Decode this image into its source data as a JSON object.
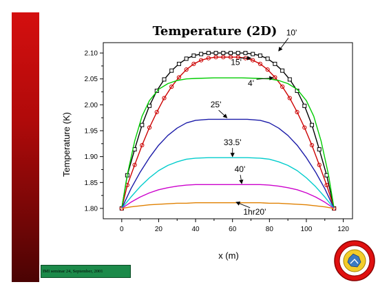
{
  "slide": {
    "footer_text": "IMI seminar 24, September, 2001",
    "logo_icon": "university-seal-logo"
  },
  "chart_data": {
    "type": "line",
    "title": "Temperature (2D)",
    "xlabel": "x (m)",
    "ylabel": "Temperature (K)",
    "xlim": [
      -10,
      125
    ],
    "ylim": [
      1.78,
      2.12
    ],
    "x_ticks": [
      0,
      20,
      40,
      60,
      80,
      100,
      120
    ],
    "y_ticks": [
      1.8,
      1.85,
      1.9,
      1.95,
      2.0,
      2.05,
      2.1
    ],
    "grid": false,
    "legend": "none",
    "series": [
      {
        "color": "#000000",
        "marker": "square",
        "x": [
          0,
          3,
          7,
          11,
          15,
          19,
          23,
          27,
          31,
          35,
          39,
          43,
          47,
          51,
          55,
          59,
          63,
          67,
          71,
          75,
          79,
          83,
          87,
          91,
          95,
          99,
          103,
          107,
          111,
          115
        ],
        "y": [
          1.8,
          1.864,
          1.914,
          1.961,
          1.998,
          2.027,
          2.049,
          2.066,
          2.079,
          2.089,
          2.095,
          2.098,
          2.1,
          2.1,
          2.1,
          2.1,
          2.1,
          2.1,
          2.098,
          2.095,
          2.089,
          2.079,
          2.066,
          2.049,
          2.027,
          1.998,
          1.961,
          1.914,
          1.864,
          1.8
        ]
      },
      {
        "color": "#cc0000",
        "marker": "circle",
        "x": [
          0,
          3,
          7,
          11,
          15,
          19,
          23,
          27,
          31,
          35,
          39,
          43,
          47,
          51,
          55,
          59,
          63,
          67,
          71,
          75,
          79,
          83,
          87,
          91,
          95,
          99,
          103,
          107,
          111,
          115
        ],
        "y": [
          1.8,
          1.845,
          1.884,
          1.922,
          1.956,
          1.986,
          2.013,
          2.035,
          2.053,
          2.068,
          2.079,
          2.086,
          2.09,
          2.092,
          2.092,
          2.092,
          2.092,
          2.09,
          2.086,
          2.079,
          2.068,
          2.053,
          2.035,
          2.013,
          1.986,
          1.956,
          1.922,
          1.884,
          1.845,
          1.8
        ]
      },
      {
        "color": "#00cc00",
        "marker": "none",
        "x": [
          0,
          3,
          7,
          11,
          15,
          20,
          25,
          30,
          35,
          40,
          50,
          57,
          65,
          75,
          80,
          85,
          90,
          95,
          100,
          104,
          108,
          112,
          115
        ],
        "y": [
          1.8,
          1.865,
          1.93,
          1.978,
          2.008,
          2.03,
          2.041,
          2.047,
          2.05,
          2.051,
          2.052,
          2.052,
          2.052,
          2.051,
          2.05,
          2.047,
          2.041,
          2.03,
          2.008,
          1.978,
          1.93,
          1.865,
          1.8
        ]
      },
      {
        "color": "#1a1aa8",
        "marker": "none",
        "x": [
          0,
          5,
          10,
          15,
          20,
          25,
          30,
          35,
          40,
          47,
          57,
          68,
          75,
          80,
          85,
          90,
          95,
          100,
          105,
          110,
          115
        ],
        "y": [
          1.8,
          1.838,
          1.87,
          1.898,
          1.922,
          1.941,
          1.955,
          1.965,
          1.97,
          1.972,
          1.972,
          1.972,
          1.97,
          1.965,
          1.955,
          1.941,
          1.922,
          1.898,
          1.87,
          1.838,
          1.8
        ]
      },
      {
        "color": "#00cccc",
        "marker": "none",
        "x": [
          0,
          5,
          10,
          15,
          20,
          25,
          30,
          35,
          40,
          47,
          57,
          68,
          75,
          80,
          85,
          90,
          95,
          100,
          105,
          110,
          115
        ],
        "y": [
          1.8,
          1.822,
          1.842,
          1.859,
          1.873,
          1.883,
          1.89,
          1.895,
          1.897,
          1.898,
          1.898,
          1.898,
          1.897,
          1.895,
          1.89,
          1.883,
          1.873,
          1.859,
          1.842,
          1.822,
          1.8
        ]
      },
      {
        "color": "#cc00cc",
        "marker": "none",
        "x": [
          0,
          5,
          10,
          15,
          20,
          25,
          30,
          35,
          40,
          47,
          57,
          68,
          75,
          80,
          85,
          90,
          95,
          100,
          105,
          110,
          115
        ],
        "y": [
          1.8,
          1.812,
          1.822,
          1.83,
          1.836,
          1.84,
          1.843,
          1.845,
          1.846,
          1.846,
          1.846,
          1.846,
          1.846,
          1.845,
          1.843,
          1.84,
          1.836,
          1.83,
          1.822,
          1.812,
          1.8
        ]
      },
      {
        "color": "#e08000",
        "marker": "none",
        "x": [
          0,
          5,
          10,
          15,
          20,
          25,
          30,
          35,
          40,
          47,
          57,
          68,
          75,
          80,
          85,
          90,
          95,
          100,
          105,
          110,
          115
        ],
        "y": [
          1.8,
          1.803,
          1.805,
          1.807,
          1.808,
          1.809,
          1.81,
          1.81,
          1.811,
          1.811,
          1.811,
          1.811,
          1.811,
          1.81,
          1.81,
          1.809,
          1.808,
          1.807,
          1.805,
          1.803,
          1.8
        ]
      }
    ],
    "annotations": [
      {
        "text": "10'",
        "tx": 92,
        "ty": 2.134,
        "ax": 85,
        "ay": 2.104
      },
      {
        "text": "15'",
        "tx": 62,
        "ty": 2.077,
        "ax": 70,
        "ay": 2.09
      },
      {
        "text": "4'",
        "tx": 70,
        "ty": 2.036,
        "ax": 82,
        "ay": 2.052
      },
      {
        "text": "25'",
        "tx": 51,
        "ty": 1.995,
        "ax": 57,
        "ay": 1.975
      },
      {
        "text": "33.5'",
        "tx": 60,
        "ty": 1.922,
        "ax": 60,
        "ay": 1.9
      },
      {
        "text": "40'",
        "tx": 64,
        "ty": 1.87,
        "ax": 65,
        "ay": 1.848
      },
      {
        "text": "1hr20'",
        "tx": 72,
        "ty": 1.788,
        "ax": 62,
        "ay": 1.812
      }
    ]
  }
}
